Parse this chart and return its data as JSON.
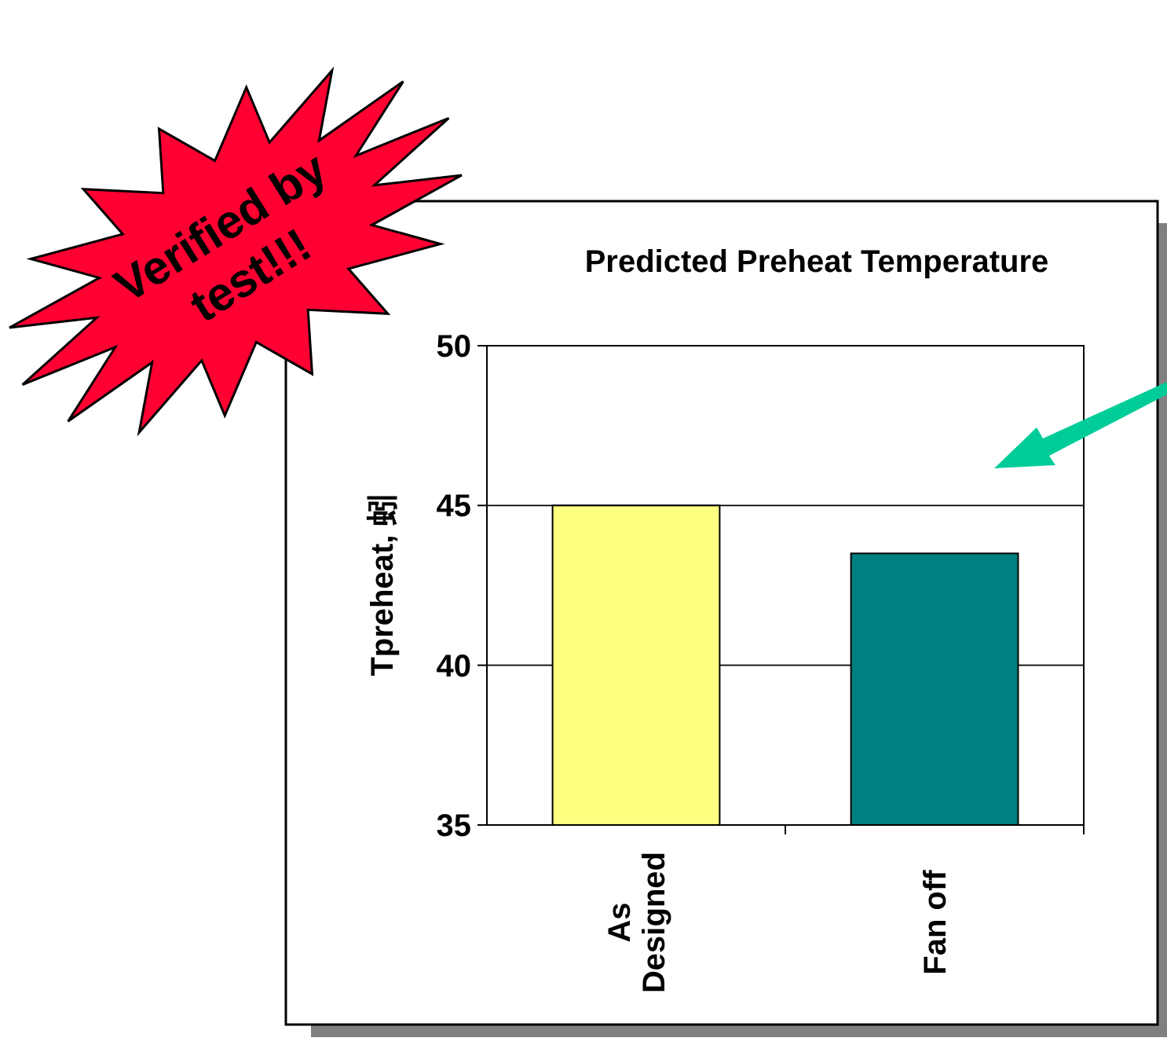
{
  "chart_data": {
    "type": "bar",
    "title": "Predicted Preheat Temperature",
    "ylabel": "Tpreheat, 蚓",
    "categories": [
      "As Designed",
      "Fan off"
    ],
    "values": [
      45.0,
      43.5
    ],
    "colors": [
      "#ffff80",
      "#008080"
    ],
    "ylim": [
      35,
      50
    ],
    "yticks": [
      35,
      40,
      45,
      50
    ],
    "grid": "y",
    "annotations": [
      "Verified by test!!!"
    ]
  }
}
